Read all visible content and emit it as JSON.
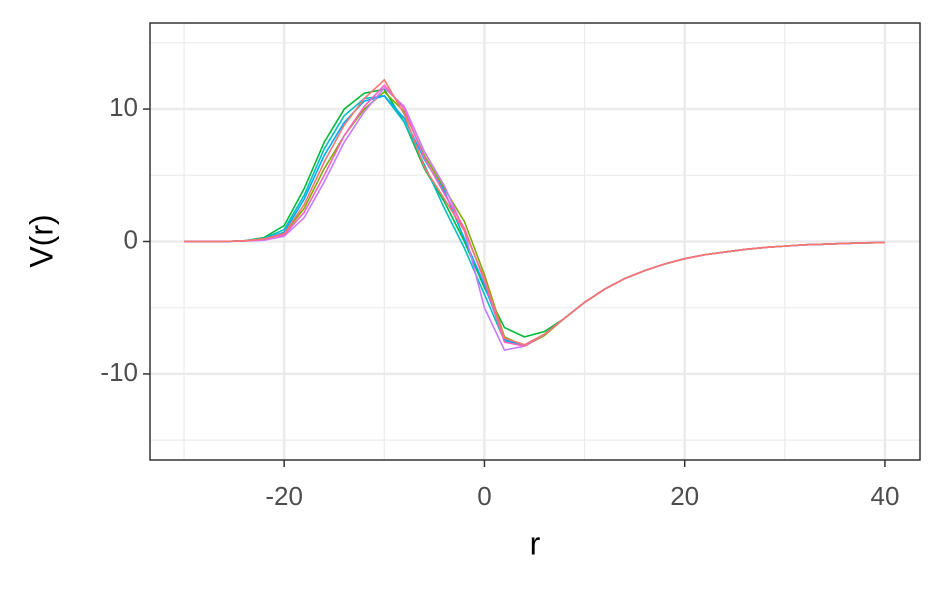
{
  "chart_data": {
    "type": "line",
    "x_label": "r",
    "y_label": "V(r)",
    "x": [
      -30,
      -28,
      -26,
      -24,
      -22,
      -20,
      -18,
      -16,
      -14,
      -12,
      -10,
      -8,
      -6,
      -4,
      -2,
      0,
      2,
      4,
      6,
      8,
      10,
      12,
      14,
      16,
      18,
      20,
      22,
      24,
      26,
      28,
      30,
      32,
      34,
      36,
      38,
      40
    ],
    "series": [
      {
        "color": "#00BA38",
        "values": [
          0,
          0,
          0,
          0.05,
          0.3,
          1.2,
          4,
          7.5,
          10,
          11.2,
          11.5,
          9,
          5.5,
          3,
          0,
          -3.5,
          -6.5,
          -7.2,
          -6.8,
          -5.8,
          -4.6,
          -3.6,
          -2.8,
          -2.2,
          -1.7,
          -1.3,
          -1,
          -0.8,
          -0.6,
          -0.45,
          -0.35,
          -0.25,
          -0.2,
          -0.15,
          -0.1,
          -0.08
        ]
      },
      {
        "color": "#7CAE00",
        "values": [
          0,
          0,
          0,
          0.05,
          0.2,
          0.6,
          2.5,
          5.5,
          8,
          10,
          11.3,
          9.8,
          6.5,
          4,
          1.5,
          -2.5,
          -7.2,
          -7.9,
          -7.1,
          -5.8,
          -4.6,
          -3.6,
          -2.8,
          -2.2,
          -1.7,
          -1.3,
          -1,
          -0.8,
          -0.6,
          -0.45,
          -0.35,
          -0.25,
          -0.2,
          -0.15,
          -0.1,
          -0.08
        ]
      },
      {
        "color": "#00BFC4",
        "values": [
          0,
          0,
          0,
          0.05,
          0.25,
          0.9,
          3.5,
          7,
          9.5,
          10.8,
          11,
          9,
          5.8,
          2.5,
          -0.5,
          -4,
          -7.5,
          -7.9,
          -7,
          -5.8,
          -4.6,
          -3.6,
          -2.8,
          -2.2,
          -1.7,
          -1.3,
          -1,
          -0.8,
          -0.6,
          -0.45,
          -0.35,
          -0.25,
          -0.2,
          -0.15,
          -0.1,
          -0.08
        ]
      },
      {
        "color": "#00A9FF",
        "values": [
          0,
          0,
          0,
          0.05,
          0.2,
          0.7,
          3.2,
          6.5,
          9,
          10.6,
          11,
          9.3,
          6.2,
          3.8,
          0.2,
          -3.3,
          -7.4,
          -7.8,
          -7,
          -5.8,
          -4.6,
          -3.6,
          -2.8,
          -2.2,
          -1.7,
          -1.3,
          -1,
          -0.8,
          -0.6,
          -0.45,
          -0.35,
          -0.25,
          -0.2,
          -0.15,
          -0.1,
          -0.08
        ]
      },
      {
        "color": "#C77CFF",
        "values": [
          0,
          0,
          0,
          0.03,
          0.1,
          0.4,
          1.8,
          4.5,
          7.5,
          9.8,
          11.6,
          10.2,
          6.8,
          4.2,
          0.8,
          -5,
          -8.2,
          -7.9,
          -7,
          -5.8,
          -4.6,
          -3.6,
          -2.8,
          -2.2,
          -1.7,
          -1.3,
          -1,
          -0.8,
          -0.6,
          -0.45,
          -0.35,
          -0.25,
          -0.2,
          -0.15,
          -0.1,
          -0.08
        ]
      },
      {
        "color": "#FF61C3",
        "values": [
          0,
          0,
          0,
          0.04,
          0.15,
          0.5,
          2.2,
          5,
          8,
          10.2,
          11.8,
          10,
          6.3,
          3.6,
          1,
          -3,
          -7.6,
          -7.9,
          -7,
          -5.8,
          -4.6,
          -3.6,
          -2.8,
          -2.2,
          -1.7,
          -1.3,
          -1,
          -0.8,
          -0.6,
          -0.45,
          -0.35,
          -0.25,
          -0.2,
          -0.15,
          -0.1,
          -0.08
        ]
      },
      {
        "color": "#F8766D",
        "values": [
          0,
          0,
          0,
          0.05,
          0.2,
          0.6,
          2.8,
          6,
          8.8,
          10.8,
          12.2,
          9.6,
          5.6,
          3.2,
          0.8,
          -2.8,
          -7.3,
          -7.8,
          -7,
          -5.8,
          -4.6,
          -3.6,
          -2.8,
          -2.2,
          -1.7,
          -1.3,
          -1,
          -0.8,
          -0.6,
          -0.45,
          -0.35,
          -0.25,
          -0.2,
          -0.15,
          -0.1,
          -0.08
        ]
      }
    ],
    "xlim": [
      -33.4,
      43.5
    ],
    "ylim": [
      -16.5,
      16.5
    ],
    "xticks": [
      -20,
      0,
      20,
      40
    ],
    "yticks": [
      -10,
      0,
      10
    ],
    "x_minor_grid": [
      -30,
      -10,
      10,
      30
    ],
    "y_minor_grid": [
      -15,
      -5,
      5,
      15
    ],
    "grid": true
  }
}
